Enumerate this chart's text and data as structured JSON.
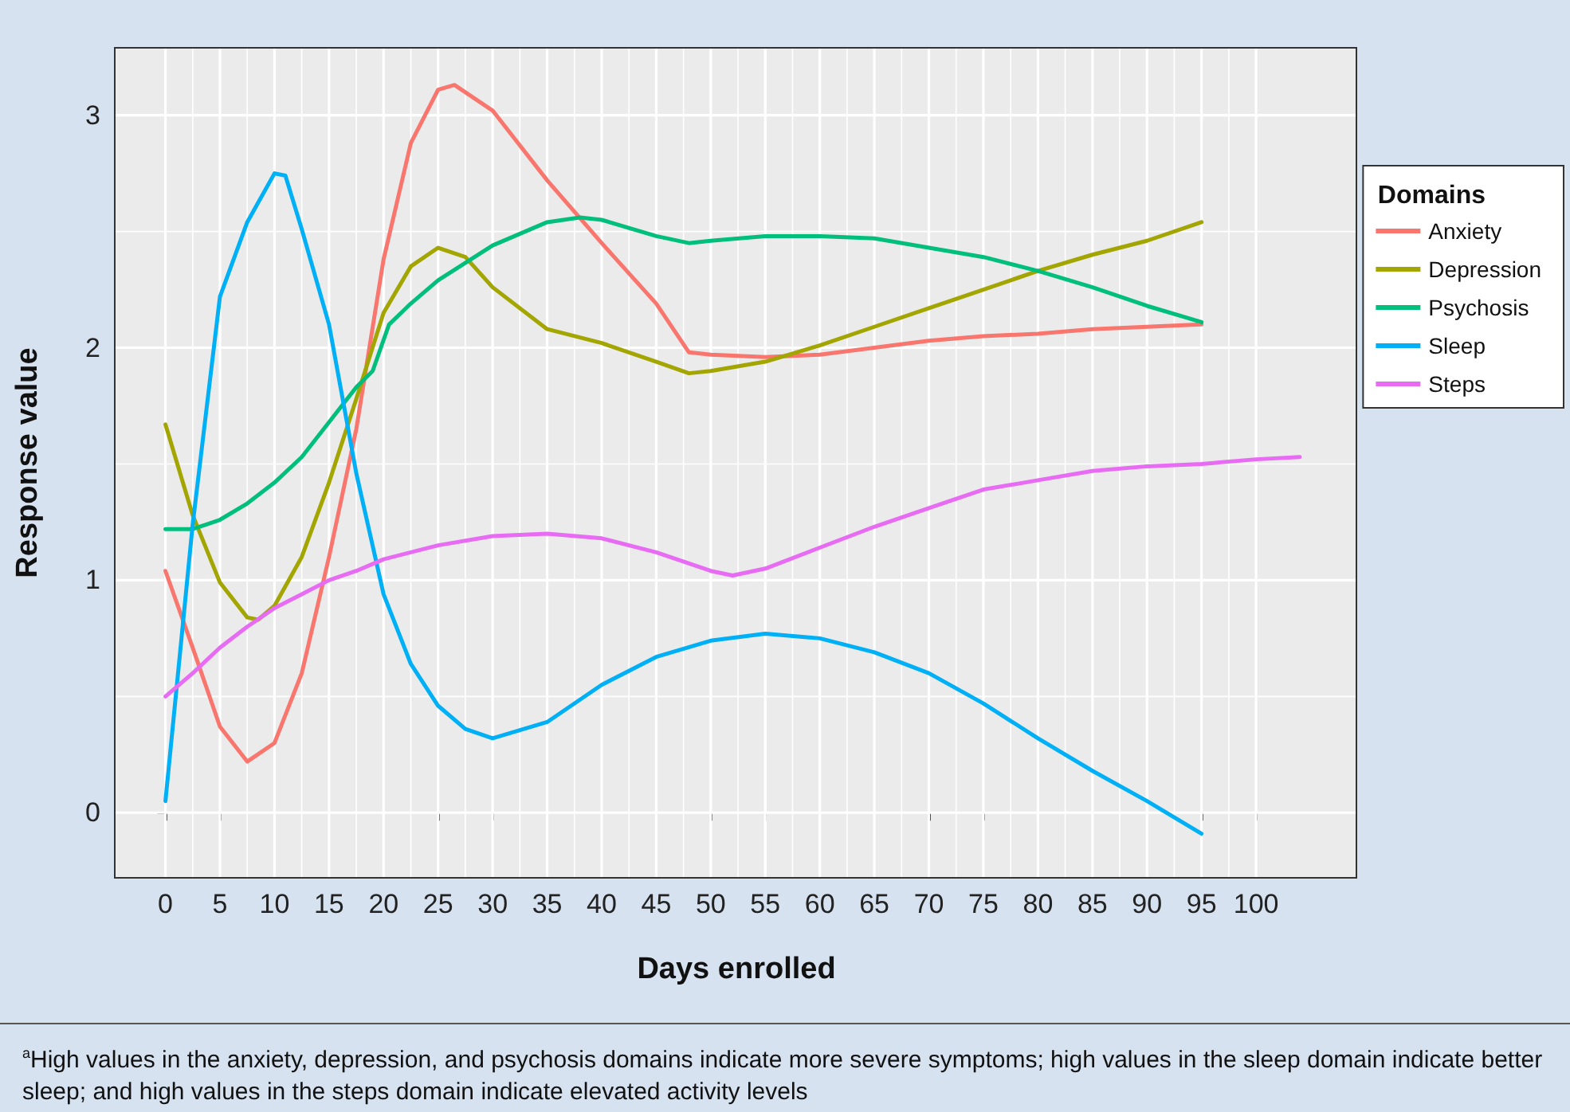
{
  "chart_data": {
    "type": "line",
    "xlabel": "Days enrolled",
    "ylabel": "Response value",
    "legend_title": "Domains",
    "legend": "right",
    "grid": true,
    "marker": "none",
    "line_style": "solid",
    "xlim": [
      -4.5,
      109.2
    ],
    "xticks": [
      0,
      5,
      10,
      15,
      20,
      25,
      30,
      35,
      40,
      45,
      50,
      55,
      60,
      65,
      70,
      75,
      80,
      85,
      90,
      95,
      100
    ],
    "ylim": [
      -0.28,
      3.29
    ],
    "yticks": [
      0,
      1,
      2,
      3
    ],
    "annotations": [
      "$^{a}$High values in the anxiety, depression, and psychosis domains indicate more severe symptoms; high values in the sleep domain indicate better sleep; and high values in the steps domain indicate elevated activity levels"
    ],
    "series": [
      {
        "name": "Anxiety",
        "color": "#f8766d",
        "x": [
          0,
          2.5,
          5,
          7.5,
          10,
          12.5,
          15,
          17.5,
          20,
          22.5,
          25,
          26.5,
          30,
          35,
          40,
          45,
          48,
          50,
          55,
          60,
          65,
          70,
          75,
          80,
          85,
          90,
          95
        ],
        "values": [
          1.04,
          0.71,
          0.37,
          0.22,
          0.3,
          0.6,
          1.1,
          1.65,
          2.38,
          2.88,
          3.11,
          3.13,
          3.02,
          2.72,
          2.45,
          2.19,
          1.98,
          1.97,
          1.96,
          1.97,
          2.0,
          2.03,
          2.05,
          2.06,
          2.08,
          2.09,
          2.1
        ]
      },
      {
        "name": "Depression",
        "color": "#a3a500",
        "x": [
          0,
          2.5,
          5,
          7.5,
          8.5,
          10,
          12.5,
          15,
          17.5,
          20,
          22.5,
          25,
          27.5,
          30,
          35,
          37.5,
          40,
          45,
          48,
          50,
          55,
          60,
          65,
          70,
          75,
          80,
          85,
          90,
          95
        ],
        "values": [
          1.67,
          1.28,
          0.99,
          0.84,
          0.83,
          0.89,
          1.1,
          1.42,
          1.78,
          2.15,
          2.35,
          2.43,
          2.39,
          2.26,
          2.08,
          2.05,
          2.02,
          1.94,
          1.89,
          1.9,
          1.94,
          2.01,
          2.09,
          2.17,
          2.25,
          2.33,
          2.4,
          2.46,
          2.54
        ]
      },
      {
        "name": "Psychosis",
        "color": "#00bf7d",
        "x": [
          0,
          2.5,
          5,
          7.5,
          10,
          12.5,
          15,
          17.5,
          19,
          20.5,
          22.5,
          25,
          30,
          35,
          38,
          40,
          45,
          48,
          50,
          55,
          60,
          65,
          70,
          75,
          80,
          85,
          90,
          95
        ],
        "values": [
          1.22,
          1.22,
          1.26,
          1.33,
          1.42,
          1.53,
          1.68,
          1.83,
          1.9,
          2.1,
          2.19,
          2.29,
          2.44,
          2.54,
          2.56,
          2.55,
          2.48,
          2.45,
          2.46,
          2.48,
          2.48,
          2.47,
          2.43,
          2.39,
          2.33,
          2.26,
          2.18,
          2.11
        ]
      },
      {
        "name": "Sleep",
        "color": "#00b0f6",
        "x": [
          0,
          2.5,
          5,
          7.5,
          10,
          11,
          12.5,
          15,
          17.5,
          20,
          22.5,
          25,
          27.5,
          30,
          35,
          40,
          45,
          50,
          55,
          60,
          65,
          70,
          75,
          80,
          85,
          90,
          95
        ],
        "values": [
          0.05,
          1.24,
          2.22,
          2.54,
          2.75,
          2.74,
          2.51,
          2.1,
          1.46,
          0.94,
          0.64,
          0.46,
          0.36,
          0.32,
          0.39,
          0.55,
          0.67,
          0.74,
          0.77,
          0.75,
          0.69,
          0.6,
          0.47,
          0.32,
          0.18,
          0.05,
          -0.09
        ]
      },
      {
        "name": "Steps",
        "color": "#e76bf3",
        "x": [
          0,
          2.5,
          5,
          7.5,
          10,
          12.5,
          15,
          17.5,
          20,
          25,
          30,
          35,
          40,
          45,
          50,
          52,
          55,
          60,
          65,
          70,
          75,
          80,
          85,
          90,
          95,
          100,
          104
        ],
        "values": [
          0.5,
          0.6,
          0.71,
          0.8,
          0.88,
          0.94,
          1.0,
          1.04,
          1.09,
          1.15,
          1.19,
          1.2,
          1.18,
          1.12,
          1.04,
          1.02,
          1.05,
          1.14,
          1.23,
          1.31,
          1.39,
          1.43,
          1.47,
          1.49,
          1.5,
          1.52,
          1.53
        ]
      }
    ]
  }
}
